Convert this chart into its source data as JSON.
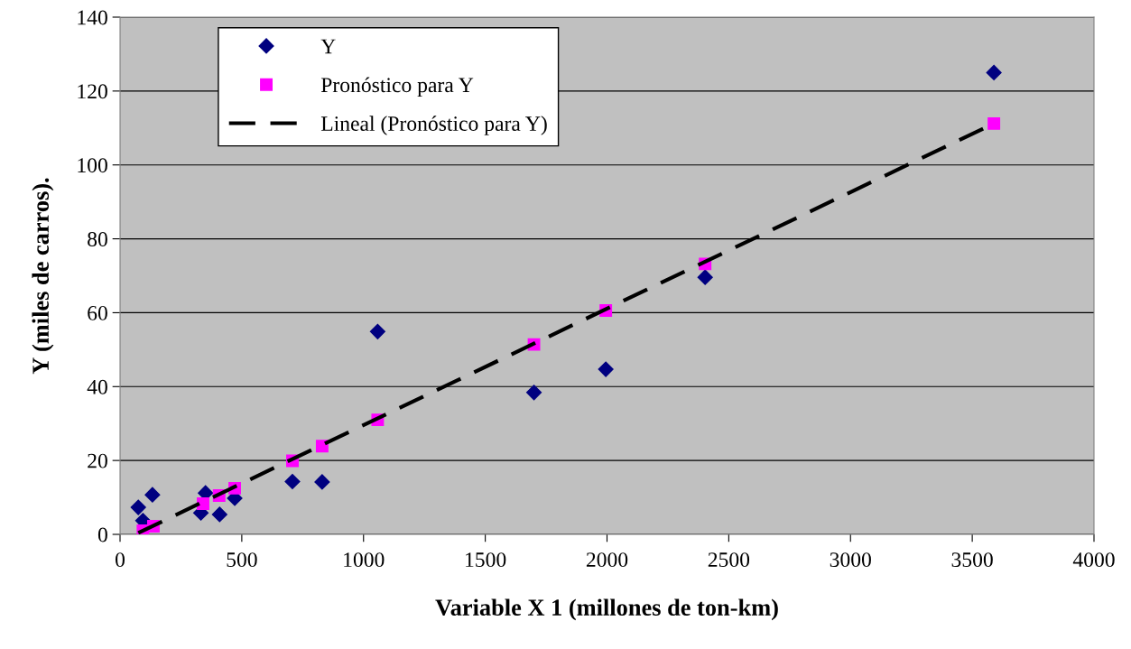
{
  "chart_data": {
    "type": "scatter",
    "xlabel": "Variable X 1 (millones de ton-km)",
    "ylabel": "Y (miles de carros).",
    "xlim": [
      0,
      4000
    ],
    "xticks": [
      0,
      500,
      1000,
      1500,
      2000,
      2500,
      3000,
      3500,
      4000
    ],
    "ylim": [
      0,
      140
    ],
    "yticks": [
      0,
      20,
      40,
      60,
      80,
      100,
      120,
      140
    ],
    "grid": "y",
    "legend": "top left",
    "series": [
      {
        "name": "Y",
        "marker": "diamond",
        "color": "#000080",
        "x": [
          75,
          94,
          133,
          137,
          332,
          351,
          409,
          471,
          708,
          830,
          1058,
          1700,
          1995,
          2403,
          3589
        ],
        "values": [
          7.3,
          3.7,
          10.7,
          null,
          5.8,
          11.2,
          5.4,
          9.8,
          14.3,
          14.2,
          54.9,
          38.4,
          44.7,
          69.6,
          125
        ]
      },
      {
        "name": "Pronóstico para Y",
        "marker": "square",
        "color": "#ff00ff",
        "x": [
          94,
          137,
          341,
          407,
          471,
          708,
          830,
          1058,
          1700,
          1995,
          2403,
          3589
        ],
        "values": [
          1,
          2.2,
          8.3,
          10.5,
          12.5,
          19.9,
          23.9,
          31.0,
          51.4,
          60.6,
          73.2,
          111.2
        ]
      },
      {
        "name": "Lineal (Pronóstico para Y)",
        "type": "line",
        "line_style": "dashed",
        "color": "#000000",
        "x": [
          75,
          3589
        ],
        "values": [
          0.4,
          111.2
        ]
      }
    ]
  }
}
